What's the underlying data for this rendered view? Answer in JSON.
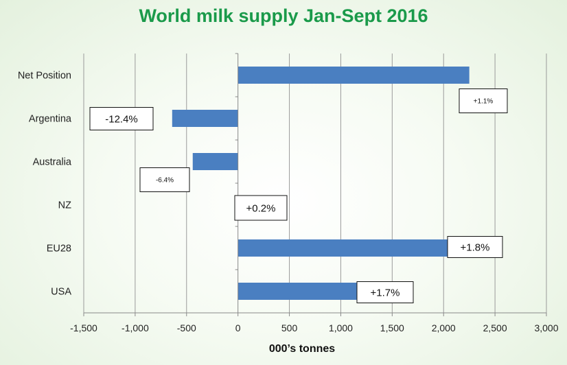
{
  "chart_data": {
    "type": "bar",
    "orientation": "horizontal",
    "title": "World milk supply Jan-Sept 2016",
    "xlabel": "000’s tonnes",
    "ylabel": "",
    "categories": [
      "Net Position",
      "Argentina",
      "Australia",
      "NZ",
      "EU28",
      "USA"
    ],
    "values": [
      2250,
      -640,
      -440,
      0,
      2040,
      1160
    ],
    "annotations": [
      "+1.1%",
      "-12.4%",
      "-6.4%",
      "+0.2%",
      "+1.8%",
      "+1.7%"
    ],
    "xlim": [
      -1500,
      3000
    ],
    "xticks": [
      -1500,
      -1000,
      -500,
      0,
      500,
      1000,
      1500,
      2000,
      2500,
      3000
    ],
    "xtick_labels": [
      "-1,500",
      "-1,000",
      "-500",
      "0",
      "500",
      "1,000",
      "1,500",
      "2,000",
      "2,500",
      "3,000"
    ],
    "grid": "vertical",
    "bar_color": "#4a7fc1",
    "title_color": "#1a9a4a"
  }
}
